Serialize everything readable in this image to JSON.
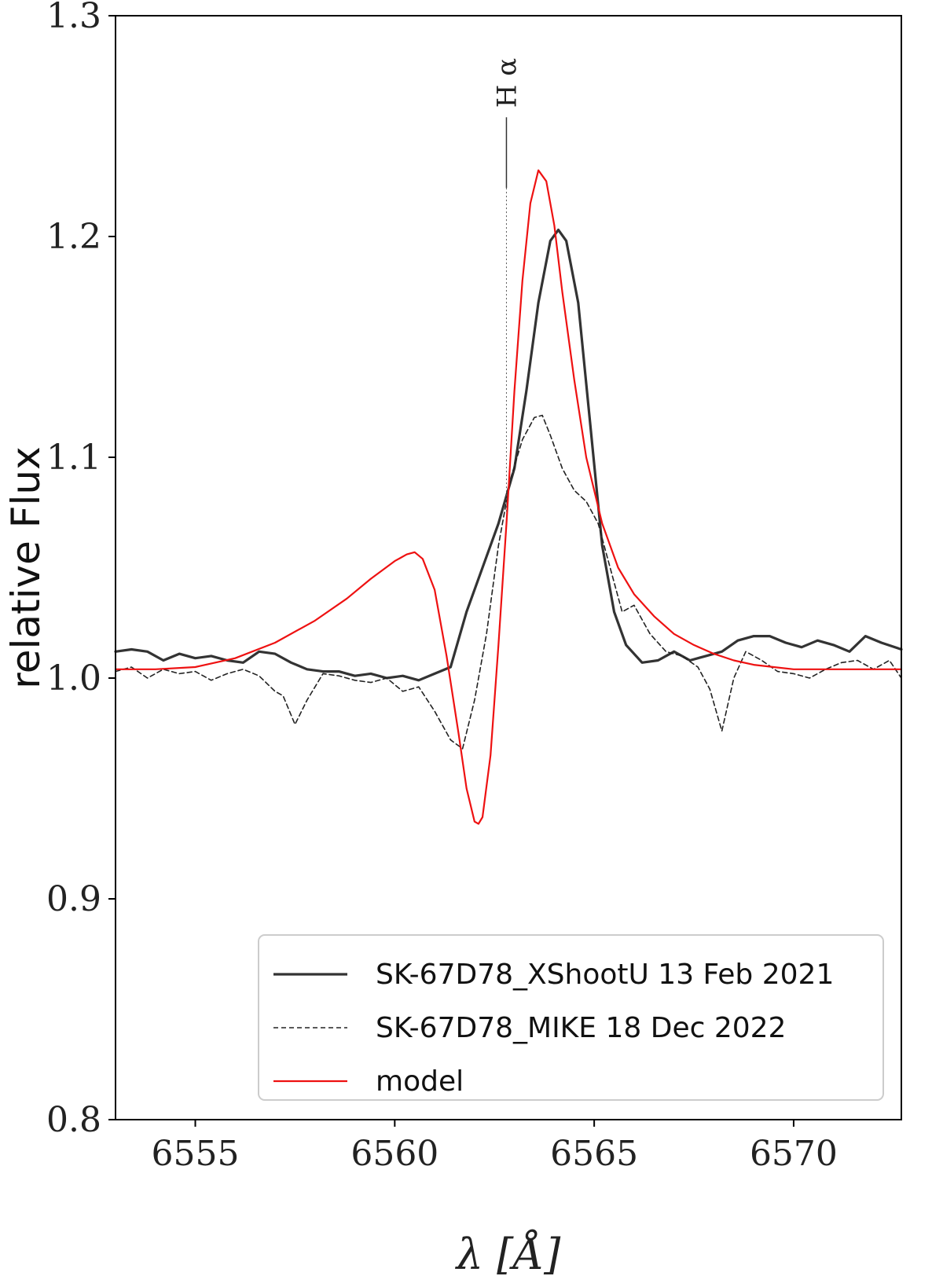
{
  "chart_data": {
    "type": "line",
    "xlabel": "λ [Å]",
    "ylabel": "relative Flux",
    "xlim": [
      6553.0,
      6572.7
    ],
    "ylim": [
      0.8,
      1.3
    ],
    "xticks": [
      6555,
      6560,
      6565,
      6570
    ],
    "xtick_labels": [
      "6555",
      "6560",
      "6565",
      "6570"
    ],
    "yticks": [
      0.8,
      0.9,
      1.0,
      1.1,
      1.2,
      1.3
    ],
    "ytick_labels": [
      "0.8",
      "0.9",
      "1.0",
      "1.1",
      "1.2",
      "1.3"
    ],
    "grid": false,
    "legend_position": "lower-right",
    "annotation": {
      "text": "H α",
      "x": 6562.8,
      "y_bottom": 1.222,
      "y_top": 1.254
    },
    "series": [
      {
        "name": "SK-67D78_XShootU 13 Feb 2021",
        "color": "#333333",
        "style": "solid",
        "x": [
          6553.0,
          6553.4,
          6553.8,
          6554.2,
          6554.6,
          6555.0,
          6555.4,
          6555.8,
          6556.2,
          6556.6,
          6557.0,
          6557.4,
          6557.8,
          6558.2,
          6558.6,
          6559.0,
          6559.4,
          6559.8,
          6560.2,
          6560.6,
          6561.0,
          6561.4,
          6561.8,
          6562.2,
          6562.6,
          6563.0,
          6563.3,
          6563.6,
          6563.9,
          6564.1,
          6564.3,
          6564.6,
          6564.9,
          6565.2,
          6565.5,
          6565.8,
          6566.2,
          6566.6,
          6567.0,
          6567.4,
          6567.8,
          6568.2,
          6568.6,
          6569.0,
          6569.4,
          6569.8,
          6570.2,
          6570.6,
          6571.0,
          6571.4,
          6571.8,
          6572.2,
          6572.7
        ],
        "y": [
          1.012,
          1.013,
          1.012,
          1.008,
          1.011,
          1.009,
          1.01,
          1.008,
          1.007,
          1.012,
          1.011,
          1.007,
          1.004,
          1.003,
          1.003,
          1.001,
          1.002,
          1.0,
          1.001,
          0.999,
          1.002,
          1.005,
          1.03,
          1.05,
          1.07,
          1.095,
          1.13,
          1.17,
          1.198,
          1.203,
          1.198,
          1.17,
          1.115,
          1.06,
          1.03,
          1.015,
          1.007,
          1.008,
          1.012,
          1.008,
          1.01,
          1.012,
          1.017,
          1.019,
          1.019,
          1.016,
          1.014,
          1.017,
          1.015,
          1.012,
          1.019,
          1.016,
          1.013
        ]
      },
      {
        "name": "SK-67D78_MIKE 18 Dec 2022",
        "color": "#222222",
        "style": "dashed",
        "x": [
          6553.0,
          6553.4,
          6553.8,
          6554.2,
          6554.6,
          6555.0,
          6555.4,
          6555.8,
          6556.2,
          6556.6,
          6557.0,
          6557.2,
          6557.5,
          6557.8,
          6558.2,
          6558.6,
          6559.0,
          6559.4,
          6559.8,
          6560.2,
          6560.6,
          6561.0,
          6561.4,
          6561.7,
          6562.0,
          6562.3,
          6562.6,
          6562.9,
          6563.2,
          6563.5,
          6563.7,
          6563.9,
          6564.2,
          6564.5,
          6564.8,
          6565.1,
          6565.4,
          6565.7,
          6566.0,
          6566.4,
          6566.8,
          6567.2,
          6567.6,
          6567.9,
          6568.2,
          6568.5,
          6568.8,
          6569.2,
          6569.6,
          6570.0,
          6570.4,
          6570.8,
          6571.2,
          6571.6,
          6572.0,
          6572.4,
          6572.7
        ],
        "y": [
          1.003,
          1.005,
          1.0,
          1.004,
          1.002,
          1.003,
          0.999,
          1.002,
          1.004,
          1.001,
          0.994,
          0.992,
          0.979,
          0.99,
          1.002,
          1.001,
          0.999,
          0.998,
          1.0,
          0.994,
          0.996,
          0.985,
          0.972,
          0.968,
          0.99,
          1.02,
          1.06,
          1.09,
          1.108,
          1.118,
          1.119,
          1.11,
          1.095,
          1.085,
          1.08,
          1.07,
          1.05,
          1.03,
          1.033,
          1.02,
          1.012,
          1.01,
          1.005,
          0.995,
          0.976,
          1.0,
          1.012,
          1.008,
          1.003,
          1.002,
          1.0,
          1.004,
          1.007,
          1.008,
          1.004,
          1.008,
          1.0
        ]
      },
      {
        "name": "model",
        "color": "#ee1111",
        "style": "solid",
        "x": [
          6553.0,
          6554.0,
          6555.0,
          6556.0,
          6557.0,
          6558.0,
          6558.8,
          6559.4,
          6560.0,
          6560.3,
          6560.5,
          6560.7,
          6561.0,
          6561.3,
          6561.6,
          6561.8,
          6562.0,
          6562.1,
          6562.2,
          6562.4,
          6562.6,
          6562.8,
          6563.0,
          6563.2,
          6563.4,
          6563.6,
          6563.8,
          6564.0,
          6564.2,
          6564.5,
          6564.8,
          6565.2,
          6565.6,
          6566.0,
          6566.5,
          6567.0,
          6567.5,
          6568.0,
          6568.5,
          6569.0,
          6569.5,
          6570.0,
          6570.5,
          6571.0,
          6572.0,
          6572.7
        ],
        "y": [
          1.004,
          1.004,
          1.005,
          1.009,
          1.016,
          1.026,
          1.036,
          1.045,
          1.053,
          1.056,
          1.057,
          1.054,
          1.04,
          1.01,
          0.975,
          0.95,
          0.935,
          0.934,
          0.937,
          0.965,
          1.015,
          1.07,
          1.13,
          1.18,
          1.215,
          1.23,
          1.225,
          1.205,
          1.175,
          1.135,
          1.1,
          1.07,
          1.05,
          1.038,
          1.028,
          1.02,
          1.015,
          1.011,
          1.008,
          1.006,
          1.005,
          1.004,
          1.004,
          1.004,
          1.004,
          1.004
        ]
      }
    ]
  }
}
